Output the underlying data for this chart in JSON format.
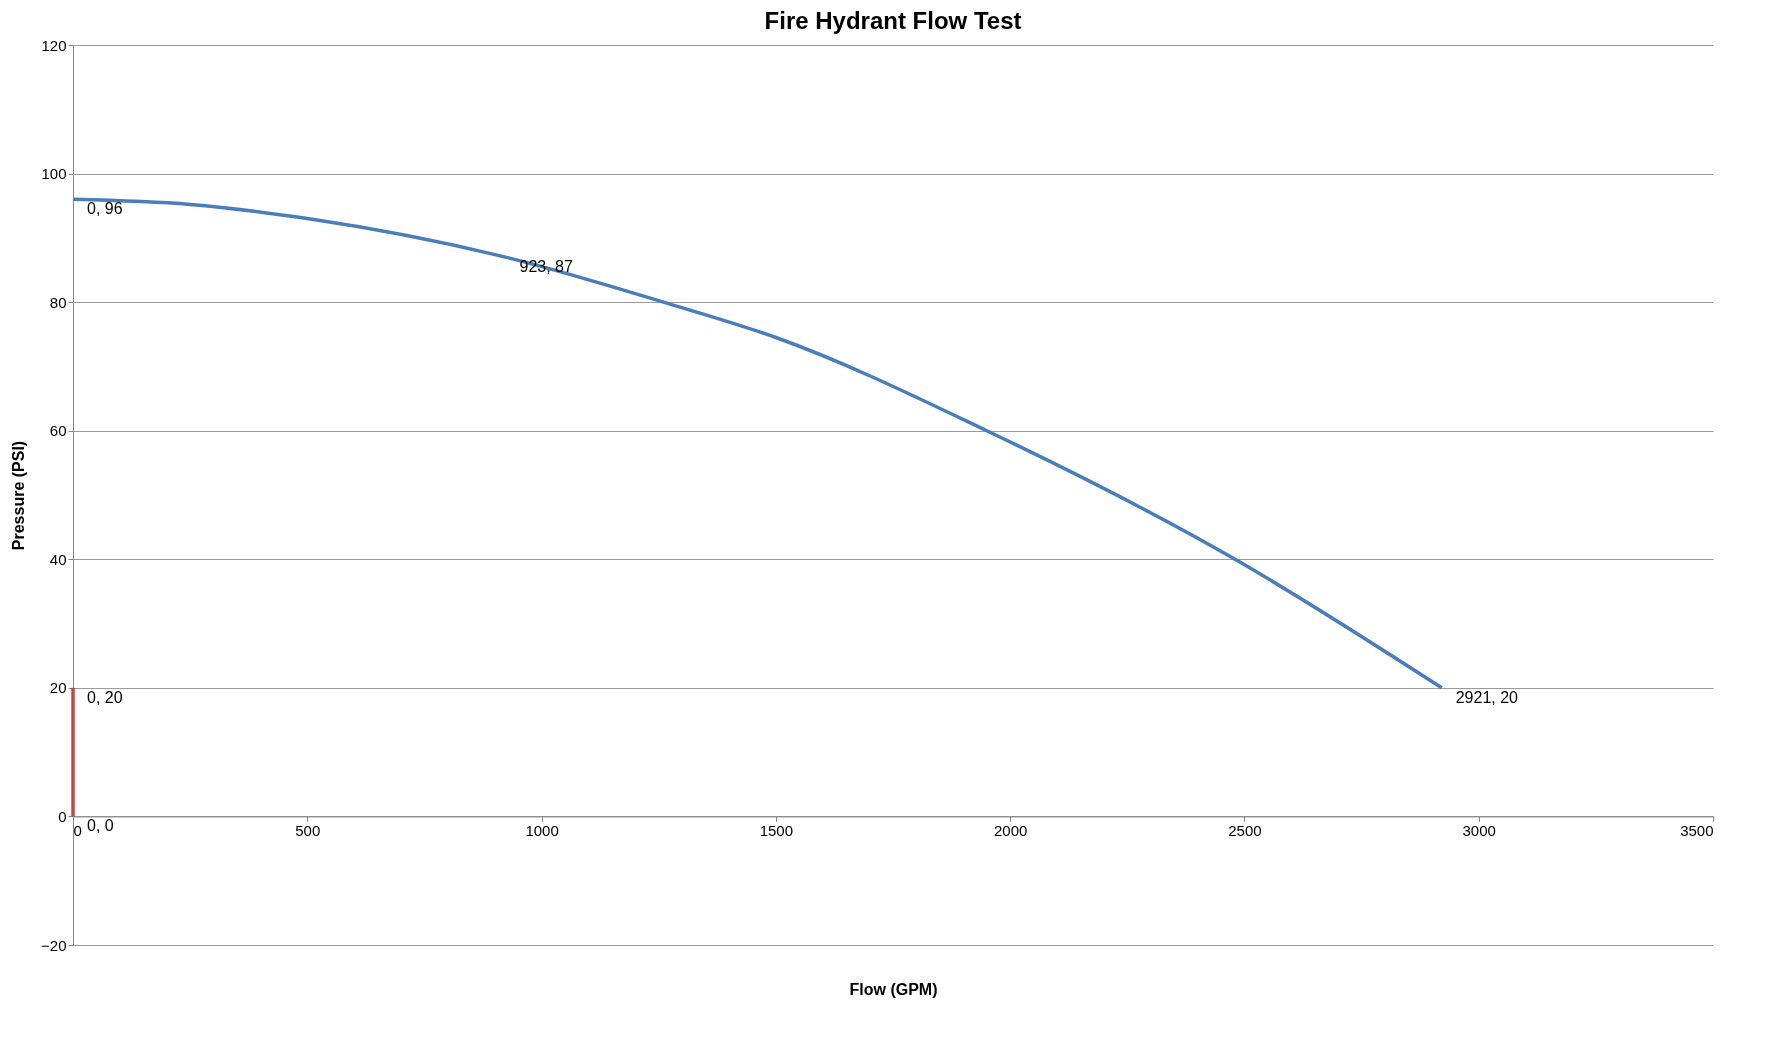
{
  "chart_data": {
    "type": "line",
    "title": "Fire Hydrant Flow Test",
    "xlabel": "Flow (GPM)",
    "ylabel": "Pressure (PSI)",
    "xlim": [
      0,
      3500
    ],
    "xticks": [
      0,
      500,
      1000,
      1500,
      2000,
      2500,
      3000,
      3500
    ],
    "ylim": [
      -20,
      120
    ],
    "yticks": [
      -20,
      0,
      20,
      40,
      60,
      80,
      100,
      120
    ],
    "grid": "y",
    "marker": "none",
    "line_style": "solid",
    "series": [
      {
        "color": "#4a7ebb",
        "x": [
          0,
          250,
          500,
          923,
          1260,
          1500,
          1950,
          2480,
          2921
        ],
        "values": [
          96,
          95.2,
          93,
          87,
          80,
          74.5,
          60,
          40,
          20
        ],
        "value_labels": [
          "0, 96",
          null,
          null,
          "923, 87",
          null,
          null,
          null,
          null,
          "2921, 20"
        ]
      },
      {
        "color": "#be4b48",
        "x": [
          0,
          0
        ],
        "values": [
          0,
          20
        ],
        "value_labels": [
          "0, 0",
          "0, 20"
        ]
      }
    ]
  }
}
